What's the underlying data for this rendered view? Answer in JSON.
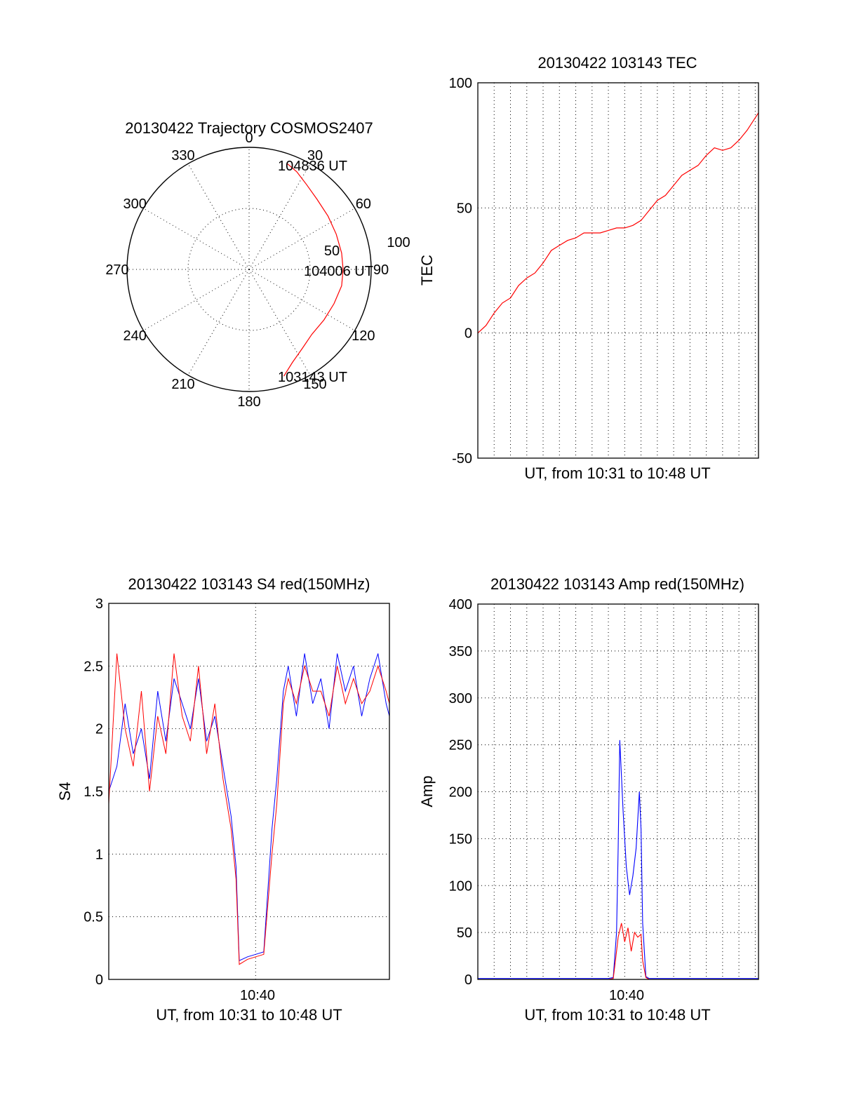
{
  "colors": {
    "red": "#ff0000",
    "blue": "#0000ff",
    "axis": "#000000",
    "background": "#ffffff"
  },
  "chart_data": [
    {
      "id": "trajectory",
      "type": "scatter",
      "projection": "polar",
      "title": "20130422 Trajectory COSMOS2407",
      "azimuth_ticks": [
        "0",
        "30",
        "60",
        "90",
        "120",
        "150",
        "180",
        "210",
        "240",
        "270",
        "300",
        "330"
      ],
      "radial_ticks": [
        "50",
        "100"
      ],
      "rlim": [
        0,
        100
      ],
      "grid": true,
      "annotations": [
        "104836 UT",
        "104006 UT",
        "103143 UT"
      ],
      "track": {
        "color": "red",
        "azimuth_deg": [
          162,
          155,
          146,
          136,
          124,
          112,
          100,
          90,
          80,
          68,
          56,
          44,
          34,
          26,
          20
        ],
        "radius": [
          92,
          84,
          78,
          74,
          74,
          75,
          77,
          77,
          77,
          77,
          78,
          80,
          84,
          89,
          92
        ]
      }
    },
    {
      "id": "tec",
      "type": "line",
      "title": "20130422 103143 TEC",
      "xlabel": "UT, from 10:31 to 10:48 UT",
      "ylabel": "TEC",
      "y_ticks": [
        "-50",
        "0",
        "50",
        "100"
      ],
      "ylim": [
        -50,
        100
      ],
      "xlim_minutes": [
        0,
        17.2
      ],
      "x_grid_step_minutes": 1,
      "grid": true,
      "series": [
        {
          "color": "red",
          "x_minutes": [
            0.0,
            0.5,
            1.0,
            1.5,
            2.0,
            2.5,
            3.0,
            3.5,
            4.0,
            4.5,
            5.0,
            5.5,
            6.0,
            6.5,
            7.0,
            7.5,
            8.0,
            8.5,
            9.0,
            9.5,
            10.0,
            10.5,
            11.0,
            11.5,
            12.0,
            12.5,
            13.0,
            13.5,
            14.0,
            14.5,
            15.0,
            15.5,
            16.0,
            16.5,
            17.0,
            17.2
          ],
          "values": [
            0,
            3,
            8,
            12,
            14,
            19,
            22,
            24,
            28,
            33,
            35,
            37,
            38,
            40,
            40,
            40,
            41,
            42,
            42,
            43,
            45,
            49,
            53,
            55,
            59,
            63,
            65,
            67,
            71,
            74,
            73,
            74,
            77,
            81,
            86,
            88
          ]
        }
      ]
    },
    {
      "id": "s4",
      "type": "line",
      "title": "20130422 103143 S4 red(150MHz)",
      "xlabel": "UT, from 10:31 to 10:48 UT",
      "ylabel": "S4",
      "x_ticks": [
        "10:40"
      ],
      "y_ticks": [
        "0",
        "0.5",
        "1",
        "1.5",
        "2",
        "2.5",
        "3"
      ],
      "ylim": [
        0,
        3
      ],
      "xlim_minutes": [
        0,
        17.2
      ],
      "x_grid_minutes": [
        9
      ],
      "grid": true,
      "series": [
        {
          "color": "blue",
          "x_minutes": [
            0.0,
            0.5,
            1.0,
            1.5,
            2.0,
            2.5,
            3.0,
            3.5,
            4.0,
            4.5,
            5.0,
            5.5,
            6.0,
            6.5,
            7.0,
            7.5,
            7.8,
            8.0,
            8.5,
            9.0,
            9.5,
            10.0,
            10.3,
            10.7,
            11.0,
            11.5,
            12.0,
            12.5,
            13.0,
            13.5,
            14.0,
            14.5,
            15.0,
            15.5,
            16.0,
            16.5,
            17.0,
            17.2
          ],
          "values": [
            1.5,
            1.7,
            2.2,
            1.8,
            2.0,
            1.6,
            2.3,
            1.9,
            2.4,
            2.2,
            2.0,
            2.4,
            1.9,
            2.1,
            1.7,
            1.3,
            0.9,
            0.15,
            0.18,
            0.2,
            0.22,
            1.2,
            1.6,
            2.3,
            2.5,
            2.1,
            2.6,
            2.2,
            2.4,
            2.0,
            2.6,
            2.3,
            2.5,
            2.1,
            2.4,
            2.6,
            2.2,
            2.1
          ]
        },
        {
          "color": "red",
          "x_minutes": [
            0.0,
            0.5,
            1.0,
            1.5,
            2.0,
            2.5,
            3.0,
            3.5,
            4.0,
            4.5,
            5.0,
            5.5,
            6.0,
            6.5,
            7.0,
            7.5,
            7.8,
            8.0,
            8.5,
            9.0,
            9.5,
            10.0,
            10.3,
            10.7,
            11.0,
            11.5,
            12.0,
            12.5,
            13.0,
            13.5,
            14.0,
            14.5,
            15.0,
            15.5,
            16.0,
            16.5,
            17.0,
            17.2
          ],
          "values": [
            1.4,
            2.6,
            2.0,
            1.7,
            2.3,
            1.5,
            2.1,
            1.8,
            2.6,
            2.1,
            1.9,
            2.5,
            1.8,
            2.2,
            1.6,
            1.2,
            0.8,
            0.12,
            0.16,
            0.18,
            0.2,
            1.0,
            1.4,
            2.2,
            2.4,
            2.2,
            2.5,
            2.3,
            2.3,
            2.1,
            2.5,
            2.2,
            2.4,
            2.2,
            2.3,
            2.5,
            2.3,
            2.2
          ]
        }
      ]
    },
    {
      "id": "amp",
      "type": "line",
      "title": "20130422 103143 Amp red(150MHz)",
      "xlabel": "UT, from 10:31 to 10:48 UT",
      "ylabel": "Amp",
      "x_ticks": [
        "10:40"
      ],
      "y_ticks": [
        "0",
        "50",
        "100",
        "150",
        "200",
        "250",
        "300",
        "350",
        "400"
      ],
      "ylim": [
        0,
        400
      ],
      "xlim_minutes": [
        0,
        17.2
      ],
      "x_grid_step_minutes": 1,
      "grid": true,
      "series": [
        {
          "color": "blue",
          "x_minutes": [
            0.0,
            8.0,
            8.3,
            8.5,
            8.6,
            8.7,
            8.9,
            9.1,
            9.3,
            9.5,
            9.7,
            9.9,
            10.0,
            10.1,
            10.3,
            10.5,
            17.2
          ],
          "values": [
            1,
            1,
            2,
            50,
            140,
            255,
            180,
            120,
            90,
            110,
            140,
            200,
            160,
            60,
            3,
            1,
            1
          ]
        },
        {
          "color": "red",
          "x_minutes": [
            0.0,
            8.0,
            8.3,
            8.5,
            8.6,
            8.8,
            9.0,
            9.2,
            9.4,
            9.6,
            9.8,
            10.0,
            10.1,
            10.3,
            10.5,
            17.2
          ],
          "values": [
            0,
            0,
            1,
            30,
            45,
            60,
            40,
            55,
            30,
            50,
            45,
            48,
            20,
            2,
            0,
            0
          ]
        }
      ]
    }
  ]
}
